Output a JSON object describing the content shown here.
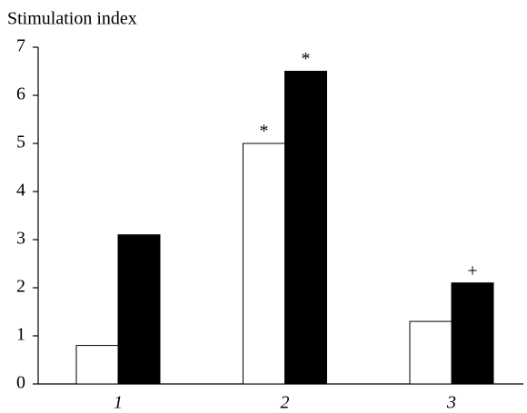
{
  "chart_data": {
    "type": "bar",
    "title": "Stimulation index",
    "categories": [
      "1",
      "2",
      "3"
    ],
    "series": [
      {
        "color": "#ffffff",
        "values": [
          0.8,
          5.0,
          1.3
        ],
        "annotations": [
          null,
          "*",
          null
        ]
      },
      {
        "color": "#000000",
        "values": [
          3.1,
          6.5,
          2.1
        ],
        "annotations": [
          null,
          "*",
          "+"
        ]
      }
    ],
    "ylim": [
      0,
      7
    ],
    "yticks": [
      0,
      1,
      2,
      3,
      4,
      5,
      6,
      7
    ],
    "grid": false
  }
}
